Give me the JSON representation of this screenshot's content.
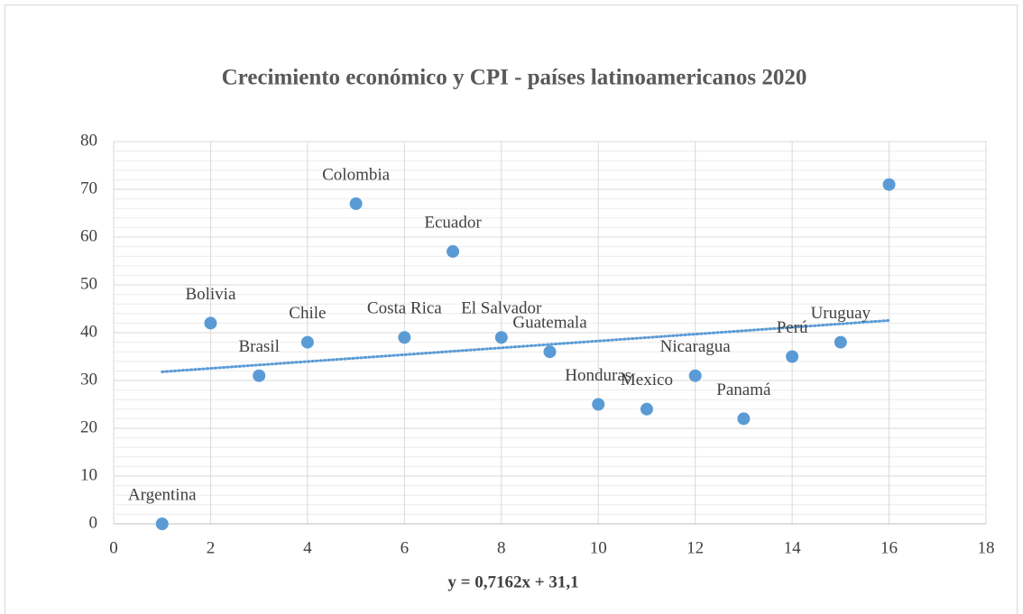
{
  "chart_data": {
    "type": "scatter",
    "title": "Crecimiento económico y CPI - países latinoamericanos 2020",
    "x": [
      1,
      2,
      3,
      4,
      5,
      6,
      7,
      8,
      9,
      10,
      11,
      12,
      13,
      14,
      15,
      16
    ],
    "values": [
      0,
      42,
      31,
      38,
      67,
      39,
      57,
      39,
      36,
      25,
      24,
      31,
      22,
      35,
      38,
      71
    ],
    "labels": [
      "Argentina",
      "Bolivia",
      "Brasil",
      "Chile",
      "Colombia",
      "Costa Rica",
      "Ecuador",
      "El Salvador",
      "Guatemala",
      "Honduras",
      "Mexico",
      "Nicaragua",
      "Panamá",
      "Perú",
      "Uruguay",
      null
    ],
    "color": "#5b9bd5",
    "xlim": [
      0,
      18
    ],
    "xticks": [
      0,
      2,
      4,
      6,
      8,
      10,
      12,
      14,
      16,
      18
    ],
    "ylim": [
      0,
      80
    ],
    "yticks": [
      0,
      10,
      20,
      30,
      40,
      50,
      60,
      70,
      80
    ],
    "grid": true,
    "trendline": {
      "slope": 0.7162,
      "intercept": 31.1,
      "label": "y = 0,7162x + 31,1"
    }
  }
}
